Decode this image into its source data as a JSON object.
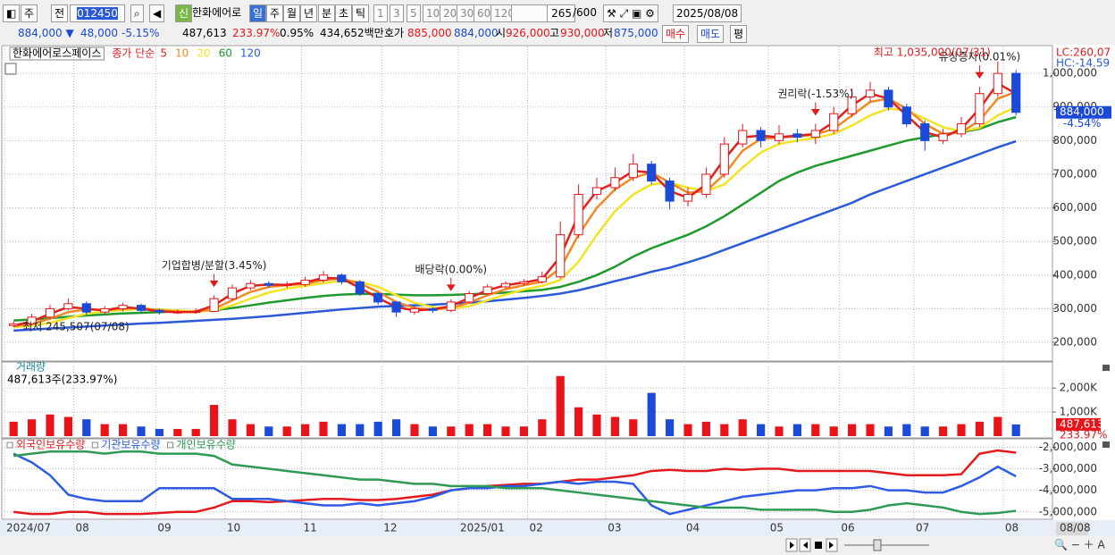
{
  "toolbar": {
    "row1": [
      "주",
      "전",
      "012450",
      "신",
      "한화에어로",
      "일",
      "주",
      "월",
      "년",
      "분",
      "초",
      "틱",
      "1",
      "3",
      "5",
      "10",
      "20",
      "30",
      "60",
      "120",
      "265",
      "/600",
      "2025/08/08"
    ],
    "row2": [
      "884,000 ▼",
      "48,000",
      "-5.15%",
      "487,613",
      "233.97%",
      "0.95%",
      "434,652백만",
      "호가",
      "885,000",
      "884,000",
      "시",
      "926,000",
      "고",
      "930,000",
      "저",
      "875,000",
      "매수",
      "매도",
      "평"
    ]
  },
  "chart_data": [
    {
      "type": "candlestick",
      "title": "한화에어로스페이스",
      "ma_label": "종가 단순",
      "up_color": "#e8141a",
      "down_color": "#1c4ad8",
      "open": [
        250000,
        255000,
        275000,
        300000,
        315000,
        290000,
        300000,
        310000,
        295000,
        290000,
        290000,
        292000,
        330000,
        362000,
        375000,
        370000,
        372000,
        385000,
        400000,
        380000,
        345000,
        320000,
        290000,
        300000,
        295000,
        320000,
        345000,
        365000,
        375000,
        380000,
        395000,
        520000,
        640000,
        660000,
        690000,
        730000,
        680000,
        620000,
        640000,
        700000,
        790000,
        830000,
        800000,
        820000,
        810000,
        830000,
        880000,
        930000,
        950000,
        900000,
        850000,
        800000,
        820000,
        850000,
        940000,
        1000000
      ],
      "high": [
        262000,
        285000,
        312000,
        330000,
        322000,
        308000,
        318000,
        315000,
        300000,
        298000,
        300000,
        340000,
        372000,
        385000,
        382000,
        380000,
        395000,
        412000,
        405000,
        385000,
        350000,
        322000,
        308000,
        305000,
        328000,
        352000,
        372000,
        382000,
        388000,
        410000,
        560000,
        670000,
        690000,
        720000,
        760000,
        740000,
        690000,
        660000,
        720000,
        810000,
        850000,
        840000,
        845000,
        835000,
        850000,
        900000,
        955000,
        975000,
        960000,
        910000,
        860000,
        835000,
        870000,
        960000,
        1035000,
        1010000
      ],
      "low": [
        245507,
        250000,
        268000,
        295000,
        282000,
        283000,
        292000,
        288000,
        283000,
        284000,
        285000,
        290000,
        325000,
        355000,
        362000,
        362000,
        366000,
        378000,
        372000,
        338000,
        312000,
        275000,
        282000,
        288000,
        290000,
        315000,
        340000,
        360000,
        368000,
        375000,
        390000,
        510000,
        625000,
        650000,
        680000,
        670000,
        595000,
        605000,
        630000,
        690000,
        780000,
        780000,
        790000,
        795000,
        790000,
        820000,
        870000,
        915000,
        890000,
        840000,
        770000,
        790000,
        810000,
        840000,
        930000,
        875000
      ],
      "close": [
        255000,
        275000,
        300000,
        315000,
        290000,
        300000,
        310000,
        295000,
        290000,
        290000,
        292000,
        330000,
        362000,
        375000,
        370000,
        372000,
        385000,
        400000,
        380000,
        345000,
        320000,
        290000,
        300000,
        295000,
        320000,
        345000,
        365000,
        375000,
        380000,
        395000,
        520000,
        640000,
        660000,
        690000,
        730000,
        680000,
        620000,
        640000,
        700000,
        790000,
        830000,
        800000,
        820000,
        810000,
        830000,
        880000,
        930000,
        950000,
        900000,
        850000,
        800000,
        820000,
        850000,
        940000,
        1000000,
        884000
      ],
      "series": [
        {
          "name": "5",
          "color": "#e0201c",
          "values": [
            250000,
            262000,
            285000,
            305000,
            300000,
            295000,
            305000,
            300000,
            292000,
            290000,
            291000,
            310000,
            345000,
            368000,
            372000,
            371000,
            378000,
            392000,
            390000,
            362000,
            332000,
            305000,
            295000,
            298000,
            308000,
            332000,
            355000,
            370000,
            378000,
            388000,
            455000,
            580000,
            650000,
            675000,
            710000,
            705000,
            650000,
            630000,
            670000,
            745000,
            810000,
            815000,
            810000,
            815000,
            820000,
            855000,
            905000,
            940000,
            925000,
            875000,
            825000,
            810000,
            835000,
            895000,
            970000,
            940000
          ]
        },
        {
          "name": "10",
          "color": "#f08a24",
          "values": [
            248000,
            255000,
            270000,
            290000,
            298000,
            296000,
            300000,
            302000,
            296000,
            291000,
            290000,
            300000,
            325000,
            350000,
            365000,
            370000,
            374000,
            385000,
            390000,
            375000,
            350000,
            320000,
            302000,
            298000,
            302000,
            318000,
            340000,
            358000,
            370000,
            380000,
            420000,
            520000,
            600000,
            655000,
            690000,
            705000,
            675000,
            645000,
            650000,
            700000,
            770000,
            805000,
            810000,
            812000,
            818000,
            835000,
            875000,
            915000,
            925000,
            895000,
            850000,
            820000,
            825000,
            860000,
            925000,
            945000
          ]
        },
        {
          "name": "20",
          "color": "#f2e424",
          "values": [
            245000,
            250000,
            258000,
            272000,
            285000,
            292000,
            296000,
            299000,
            298000,
            295000,
            292000,
            295000,
            310000,
            330000,
            348000,
            360000,
            368000,
            376000,
            383000,
            380000,
            365000,
            340000,
            318000,
            305000,
            300000,
            308000,
            325000,
            342000,
            357000,
            368000,
            385000,
            440000,
            520000,
            590000,
            640000,
            670000,
            675000,
            660000,
            650000,
            670000,
            720000,
            765000,
            790000,
            800000,
            808000,
            820000,
            845000,
            875000,
            895000,
            890000,
            865000,
            840000,
            828000,
            838000,
            875000,
            900000
          ]
        },
        {
          "name": "60",
          "color": "#1f9a2c",
          "values": [
            265000,
            268000,
            272000,
            276000,
            280000,
            283000,
            286000,
            288000,
            290000,
            292000,
            293000,
            296000,
            302000,
            310000,
            318000,
            325000,
            332000,
            338000,
            342000,
            344000,
            344000,
            342000,
            340000,
            340000,
            341000,
            343000,
            345000,
            348000,
            352000,
            356000,
            365000,
            380000,
            400000,
            425000,
            455000,
            480000,
            500000,
            520000,
            545000,
            575000,
            610000,
            645000,
            680000,
            705000,
            725000,
            740000,
            755000,
            770000,
            785000,
            800000,
            810000,
            818000,
            825000,
            835000,
            855000,
            870000
          ]
        },
        {
          "name": "120",
          "color": "#2a5ad8",
          "values": [
            235000,
            238000,
            241000,
            244000,
            247000,
            250000,
            253000,
            256000,
            258000,
            261000,
            264000,
            267000,
            270000,
            274000,
            278000,
            283000,
            288000,
            293000,
            298000,
            302000,
            306000,
            308000,
            310000,
            312000,
            315000,
            318000,
            322000,
            327000,
            332000,
            338000,
            345000,
            355000,
            368000,
            382000,
            395000,
            410000,
            422000,
            438000,
            455000,
            475000,
            495000,
            515000,
            535000,
            555000,
            575000,
            595000,
            615000,
            640000,
            660000,
            680000,
            700000,
            720000,
            740000,
            760000,
            780000,
            798000
          ]
        }
      ],
      "ylim": [
        147000,
        1080000
      ],
      "yticks": [
        {
          "value": 200000,
          "label": "200,000"
        },
        {
          "value": 300000,
          "label": "300,000"
        },
        {
          "value": 400000,
          "label": "400,000"
        },
        {
          "value": 500000,
          "label": "500,000"
        },
        {
          "value": 600000,
          "label": "600,000"
        },
        {
          "value": 700000,
          "label": "700,000"
        },
        {
          "value": 800000,
          "label": "800,000"
        },
        {
          "value": 900000,
          "label": "900,000"
        },
        {
          "value": 1000000,
          "label": "1,000,000"
        }
      ],
      "xlim": [
        -0.5,
        57
      ],
      "xticks": [
        {
          "value": -0.5,
          "label": "2024/07"
        },
        {
          "value": 3.3,
          "label": "08"
        },
        {
          "value": 7.8,
          "label": "09"
        },
        {
          "value": 11.6,
          "label": "10"
        },
        {
          "value": 15.8,
          "label": "11"
        },
        {
          "value": 20.2,
          "label": "12"
        },
        {
          "value": 24.4,
          "label": "2025/01"
        },
        {
          "value": 28.2,
          "label": "02"
        },
        {
          "value": 32.5,
          "label": "03"
        },
        {
          "value": 36.8,
          "label": "04"
        },
        {
          "value": 41.4,
          "label": "05"
        },
        {
          "value": 45.3,
          "label": "06"
        },
        {
          "value": 49.4,
          "label": "07"
        },
        {
          "value": 54.3,
          "label": "08"
        }
      ],
      "annotations": [
        {
          "text": "기업합병/분할(3.45%)",
          "x": 11
        },
        {
          "text": "배당락(0.00%)",
          "x": 24
        },
        {
          "text": "권리락(-1.53%)",
          "x": 44
        },
        {
          "text": "유상증자(0.01%)",
          "x": 53
        }
      ],
      "low_label": "최저 245,507(07/08)",
      "high_label": "최고 1,035,000(07/31)",
      "lc": "LC:260,07",
      "hc": "HC:-14.59",
      "last_label": "884,000",
      "last_change": "-4.54%",
      "cursor_date": "08/08"
    },
    {
      "type": "bar",
      "title": "거래량",
      "subtitle": "487,613주(233.97%)",
      "values": [
        600000,
        700000,
        900000,
        800000,
        700000,
        500000,
        500000,
        400000,
        300000,
        300000,
        300000,
        1300000,
        700000,
        500000,
        400000,
        400000,
        500000,
        600000,
        500000,
        500000,
        600000,
        700000,
        500000,
        400000,
        400000,
        500000,
        500000,
        400000,
        400000,
        700000,
        2500000,
        1200000,
        900000,
        800000,
        700000,
        1800000,
        700000,
        500000,
        600000,
        500000,
        700000,
        500000,
        400000,
        500000,
        500000,
        400000,
        500000,
        500000,
        400000,
        500000,
        400000,
        400000,
        500000,
        600000,
        800000,
        487613
      ],
      "ylim": [
        0,
        2900000
      ],
      "yticks": [
        {
          "value": 1000000,
          "label": "1,000K"
        },
        {
          "value": 2000000,
          "label": "2,000K"
        }
      ],
      "last_label": "487,613",
      "last_change": "233.97%"
    },
    {
      "type": "line",
      "series": [
        {
          "name": "외국인보유수량",
          "color": "#e31a1c",
          "values": [
            -5000000,
            -5100000,
            -5100000,
            -5000000,
            -5000000,
            -5100000,
            -5100000,
            -5100000,
            -5050000,
            -5000000,
            -5000000,
            -4800000,
            -4500000,
            -4500000,
            -4550000,
            -4500000,
            -4450000,
            -4400000,
            -4400000,
            -4450000,
            -4450000,
            -4400000,
            -4300000,
            -4200000,
            -4000000,
            -3900000,
            -3800000,
            -3750000,
            -3700000,
            -3700000,
            -3600000,
            -3500000,
            -3500000,
            -3400000,
            -3300000,
            -3100000,
            -3050000,
            -3100000,
            -3100000,
            -3000000,
            -3050000,
            -3000000,
            -3000000,
            -3100000,
            -3100000,
            -3100000,
            -3100000,
            -3100000,
            -3200000,
            -3300000,
            -3300000,
            -3300000,
            -3250000,
            -2300000,
            -2150000,
            -2250000
          ]
        },
        {
          "name": "기관보유수량",
          "color": "#2d5be3",
          "values": [
            -2300000,
            -2700000,
            -3300000,
            -4200000,
            -4400000,
            -4500000,
            -4500000,
            -4500000,
            -3900000,
            -3900000,
            -3900000,
            -3900000,
            -4400000,
            -4400000,
            -4400000,
            -4500000,
            -4600000,
            -4700000,
            -4700000,
            -4600000,
            -4700000,
            -4600000,
            -4500000,
            -4300000,
            -4000000,
            -3900000,
            -3900000,
            -3800000,
            -3800000,
            -3700000,
            -3600000,
            -3700000,
            -3600000,
            -3600000,
            -3700000,
            -4700000,
            -5100000,
            -4900000,
            -4700000,
            -4500000,
            -4300000,
            -4200000,
            -4100000,
            -4000000,
            -4000000,
            -3900000,
            -3900000,
            -3800000,
            -4000000,
            -4000000,
            -4100000,
            -4100000,
            -3800000,
            -3400000,
            -2900000,
            -3350000
          ]
        },
        {
          "name": "개인보유수량",
          "color": "#2e9a55",
          "values": [
            -2400000,
            -2300000,
            -2200000,
            -2200000,
            -2200000,
            -2300000,
            -2200000,
            -2200000,
            -2300000,
            -2300000,
            -2300000,
            -2400000,
            -2800000,
            -2900000,
            -3000000,
            -3100000,
            -3200000,
            -3300000,
            -3400000,
            -3500000,
            -3500000,
            -3600000,
            -3700000,
            -3700000,
            -3800000,
            -3800000,
            -3800000,
            -3900000,
            -3900000,
            -3900000,
            -4000000,
            -4100000,
            -4200000,
            -4300000,
            -4400000,
            -4500000,
            -4600000,
            -4700000,
            -4800000,
            -4800000,
            -4800000,
            -4900000,
            -4900000,
            -4900000,
            -4900000,
            -5000000,
            -5000000,
            -4900000,
            -4700000,
            -4600000,
            -4700000,
            -4800000,
            -5000000,
            -5100000,
            -5050000,
            -4950000
          ]
        }
      ],
      "ylim": [
        -5300000,
        -1650000
      ],
      "yticks": [
        {
          "value": -2000000,
          "label": "-2,000,000"
        },
        {
          "value": -3000000,
          "label": "-3,000,000"
        },
        {
          "value": -4000000,
          "label": "-4,000,000"
        },
        {
          "value": -5000000,
          "label": "-5,000,000"
        }
      ]
    }
  ]
}
